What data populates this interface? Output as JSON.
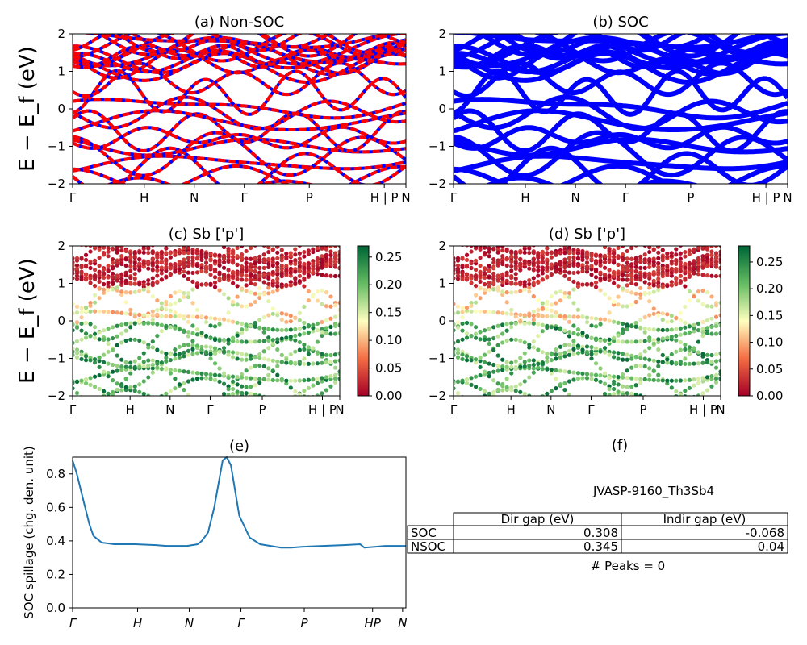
{
  "panels": {
    "a": {
      "title": "(a) Non-SOC"
    },
    "b": {
      "title": "(b) SOC"
    },
    "c": {
      "title": "(c)  Sb ['p']"
    },
    "d": {
      "title": "(d) Sb ['p']"
    },
    "e": {
      "title": "(e)"
    },
    "f": {
      "title": "(f)"
    }
  },
  "ylabel_band": "E − E_f (eV)",
  "kpath": [
    "Γ",
    "H",
    "N",
    "Γ",
    "P",
    "H | P",
    "N"
  ],
  "kpath_italic": [
    "Γ",
    "H",
    "N",
    "Γ",
    "P",
    "HP",
    "N"
  ],
  "band_yticks": [
    "−2",
    "−1",
    "0",
    "1",
    "2"
  ],
  "colorbar_c": [
    "0.00",
    "0.05",
    "0.10",
    "0.15",
    "0.20",
    "0.25"
  ],
  "colorbar_d": [
    "0.00",
    "0.05",
    "0.10",
    "0.15",
    "0.20",
    "0.25"
  ],
  "colors": {
    "nonsoc_a": "#ff0000",
    "nonsoc_b": "#0000ff",
    "soc": "#0000ff",
    "spillage": "#1f77b4"
  },
  "chart_data": [
    {
      "type": "line",
      "title": "(a) Non-SOC",
      "xlabel": "",
      "ylabel": "E − E_f (eV)",
      "ylim": [
        -2,
        2
      ],
      "x_ticks": [
        "Γ",
        "H",
        "N",
        "Γ",
        "P",
        "H | P",
        "N"
      ],
      "note_series": "band structure, red/blue dashed"
    },
    {
      "type": "line",
      "title": "(b) SOC",
      "ylim": [
        -2,
        2
      ],
      "x_ticks": [
        "Γ",
        "H",
        "N",
        "Γ",
        "P",
        "H | P",
        "N"
      ]
    },
    {
      "type": "scatter",
      "title": "(c)  Sb ['p']",
      "ylim": [
        -2,
        2
      ],
      "colorbar_range": [
        0.0,
        0.27
      ]
    },
    {
      "type": "scatter",
      "title": "(d) Sb ['p']",
      "ylim": [
        -2,
        2
      ],
      "colorbar_range": [
        0.0,
        0.28
      ]
    },
    {
      "type": "line",
      "title": "(e)",
      "ylabel": "SOC spillage (chg. den. unit)",
      "ylim": [
        0.0,
        0.9
      ],
      "yticks": [
        "0.0",
        "0.2",
        "0.4",
        "0.6",
        "0.8"
      ],
      "x": [
        0,
        0.02,
        0.05,
        0.08,
        0.1,
        0.14,
        0.2,
        0.3,
        0.4,
        0.45,
        0.5,
        0.55,
        0.6,
        0.62,
        0.65,
        0.68,
        0.72,
        0.74,
        0.76,
        0.8,
        0.85,
        0.9,
        0.95,
        1.0,
        1.05,
        1.1,
        1.2,
        1.3,
        1.38,
        1.4,
        1.45,
        1.5,
        1.6
      ],
      "values": [
        0.88,
        0.8,
        0.65,
        0.5,
        0.43,
        0.39,
        0.38,
        0.38,
        0.375,
        0.37,
        0.37,
        0.37,
        0.38,
        0.4,
        0.45,
        0.6,
        0.88,
        0.9,
        0.85,
        0.55,
        0.42,
        0.38,
        0.37,
        0.36,
        0.36,
        0.365,
        0.37,
        0.375,
        0.38,
        0.36,
        0.365,
        0.37,
        0.37
      ]
    },
    {
      "type": "table",
      "title": "(f)"
    }
  ],
  "table": {
    "caption": "JVASP-9160_Th3Sb4",
    "headers": [
      "",
      "Dir gap (eV)",
      "Indir gap (eV)"
    ],
    "rows": [
      [
        "SOC",
        "0.308",
        "-0.068"
      ],
      [
        "NSOC",
        "0.345",
        "0.04"
      ]
    ],
    "footer": "# Peaks = 0"
  }
}
